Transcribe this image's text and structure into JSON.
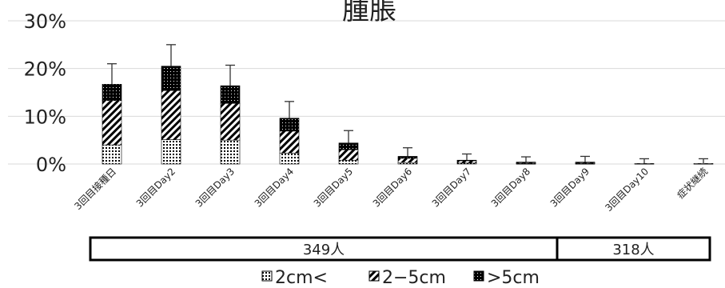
{
  "chart_data": {
    "type": "bar",
    "stacked": true,
    "title": "腫脹",
    "xlabel": "",
    "ylabel": "",
    "ylim": [
      0,
      30
    ],
    "yticks": [
      "0%",
      "10%",
      "20%",
      "30%"
    ],
    "categories": [
      "3回目接種日",
      "3回目Day2",
      "3回目Day3",
      "3回目Day4",
      "3回目Day5",
      "3回目Day6",
      "3回目Day7",
      "3回目Day8",
      "3回目Day9",
      "3回目Day10",
      "症状継続"
    ],
    "series": [
      {
        "name": "2cm<",
        "pattern": "dots",
        "values": [
          4.0,
          5.1,
          5.0,
          2.3,
          0.8,
          0.3,
          0.2,
          0.1,
          0.1,
          0.0,
          0.0
        ]
      },
      {
        "name": "2−5cm",
        "pattern": "hatch",
        "values": [
          9.3,
          10.3,
          7.7,
          4.6,
          2.2,
          0.9,
          0.5,
          0.2,
          0.2,
          0.1,
          0.1
        ]
      },
      {
        "name": ">5cm",
        "pattern": "dense",
        "values": [
          3.4,
          5.1,
          3.7,
          2.7,
          1.4,
          0.4,
          0.1,
          0.1,
          0.1,
          0.0,
          0.0
        ]
      }
    ],
    "error_top": [
      21.0,
      25.0,
      20.7,
      13.1,
      7.0,
      3.4,
      2.1,
      1.5,
      1.6,
      1.1,
      1.1
    ],
    "legend_position": "bottom",
    "grid": true
  },
  "counts": [
    {
      "label": "349人",
      "span": [
        0,
        7
      ]
    },
    {
      "label": "318人",
      "span": [
        8,
        10
      ]
    }
  ],
  "legend": [
    "2cm<",
    "2−5cm",
    ">5cm"
  ],
  "colors": {
    "grid": "#d9d9d9",
    "bar": "#000000"
  }
}
